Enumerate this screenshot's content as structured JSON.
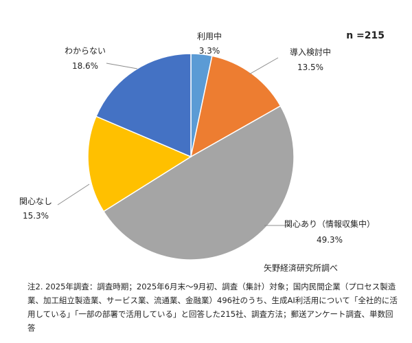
{
  "chart_data": {
    "type": "pie",
    "sample_size": "n =215",
    "slices": [
      {
        "label": "利用中",
        "value": 3.3,
        "value_text": "3.3%",
        "color": "#5b9bd5"
      },
      {
        "label": "導入検討中",
        "value": 13.5,
        "value_text": "13.5%",
        "color": "#ed7d31"
      },
      {
        "label": "関心あり（情報収集中）",
        "value": 49.3,
        "value_text": "49.3%",
        "color": "#a5a5a5"
      },
      {
        "label": "関心なし",
        "value": 15.3,
        "value_text": "15.3%",
        "color": "#ffc000"
      },
      {
        "label": "わからない",
        "value": 18.6,
        "value_text": "18.6%",
        "color": "#4472c4"
      }
    ],
    "start": "12 o'clock",
    "direction": "clockwise"
  },
  "source": "矢野経済研究所調べ",
  "note": "注2. 2025年調査：調査時期；2025年6月末～9月初、調査（集計）対象；国内民間企業（プロセス製造業、加工組立製造業、サービス業、流通業、金融業）496社のうち、生成AI利活用について「全社的に活用している」「一部の部署で活用している」と回答した215社、調査方法；郵送アンケート調査、単数回答"
}
